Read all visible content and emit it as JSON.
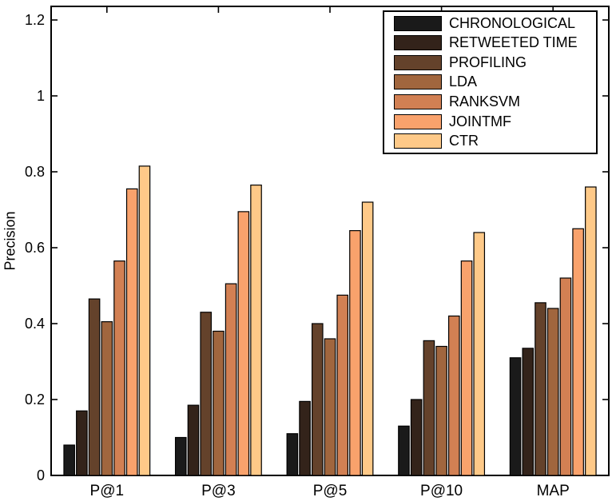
{
  "chart_data": {
    "type": "bar",
    "title": "",
    "xlabel": "",
    "ylabel": "Precision",
    "categories": [
      "P@1",
      "P@3",
      "P@5",
      "P@10",
      "MAP"
    ],
    "series": [
      {
        "name": "CHRONOLOGICAL",
        "color": "#1a1a1a",
        "values": [
          0.08,
          0.1,
          0.11,
          0.13,
          0.31
        ]
      },
      {
        "name": "RETWEETED TIME",
        "color": "#33231a",
        "values": [
          0.17,
          0.185,
          0.195,
          0.2,
          0.335
        ]
      },
      {
        "name": "PROFILING",
        "color": "#64422b",
        "values": [
          0.465,
          0.43,
          0.4,
          0.355,
          0.455
        ]
      },
      {
        "name": "LDA",
        "color": "#a1663e",
        "values": [
          0.405,
          0.38,
          0.36,
          0.34,
          0.44
        ]
      },
      {
        "name": "RANKSVM",
        "color": "#d28053",
        "values": [
          0.565,
          0.505,
          0.475,
          0.42,
          0.52
        ]
      },
      {
        "name": "JOINTMF",
        "color": "#f9a26c",
        "values": [
          0.755,
          0.695,
          0.645,
          0.565,
          0.65
        ]
      },
      {
        "name": "CTR",
        "color": "#fec988",
        "values": [
          0.815,
          0.765,
          0.72,
          0.64,
          0.76
        ]
      }
    ],
    "ylim": [
      0,
      1.236
    ],
    "yticks": [
      0,
      0.2,
      0.4,
      0.6,
      0.8,
      1,
      1.2
    ],
    "ytick_labels": [
      "0",
      "0.2",
      "0.4",
      "0.6",
      "0.8",
      "1",
      "1.2"
    ],
    "grid": false,
    "legend_position": "top-right",
    "axis_color": "#000000",
    "bar_outline_color": "#000000",
    "plot_background": "#ffffff"
  }
}
